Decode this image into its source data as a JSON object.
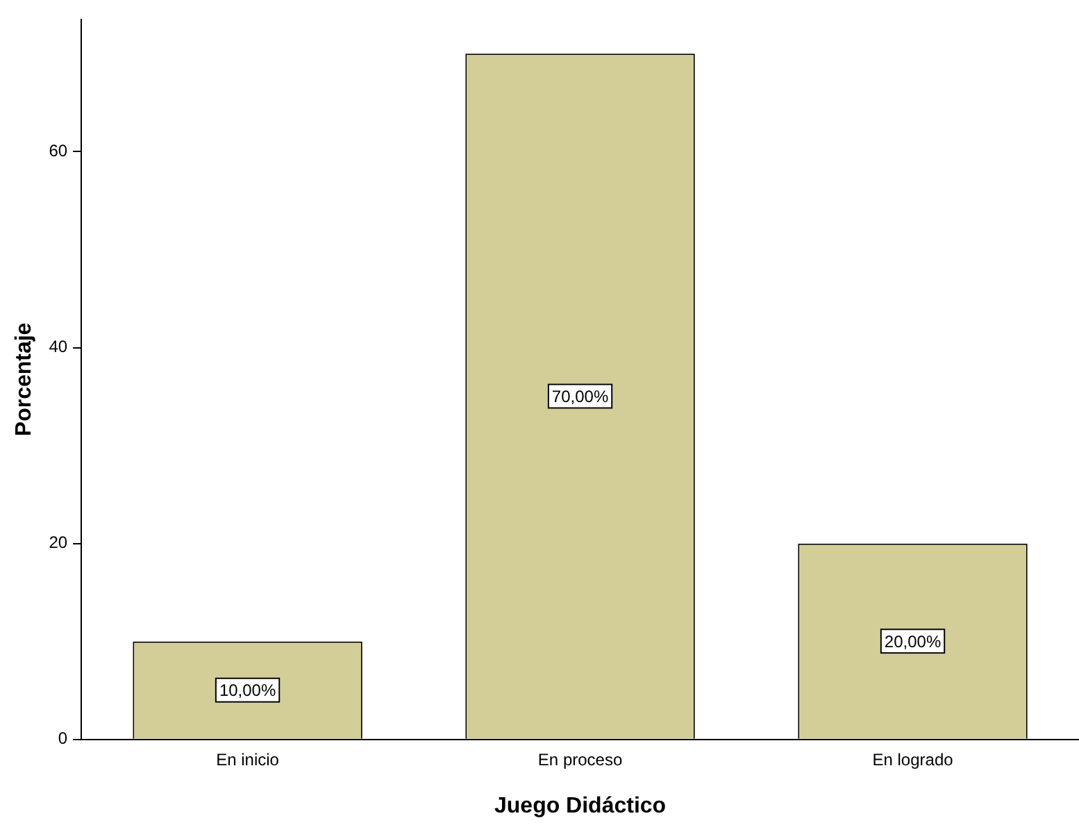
{
  "chart_data": {
    "type": "bar",
    "xlabel": "Juego Didáctico",
    "ylabel": "Porcentaje",
    "categories": [
      "En inicio",
      "En proceso",
      "En logrado"
    ],
    "values": [
      10,
      70,
      20
    ],
    "value_labels": [
      "10,00%",
      "70,00%",
      "20,00%"
    ],
    "color": "#d3ce97",
    "ylim": [
      0,
      73.5
    ],
    "yticks": [
      0,
      20,
      40,
      60
    ],
    "grid": false,
    "legend": false
  }
}
